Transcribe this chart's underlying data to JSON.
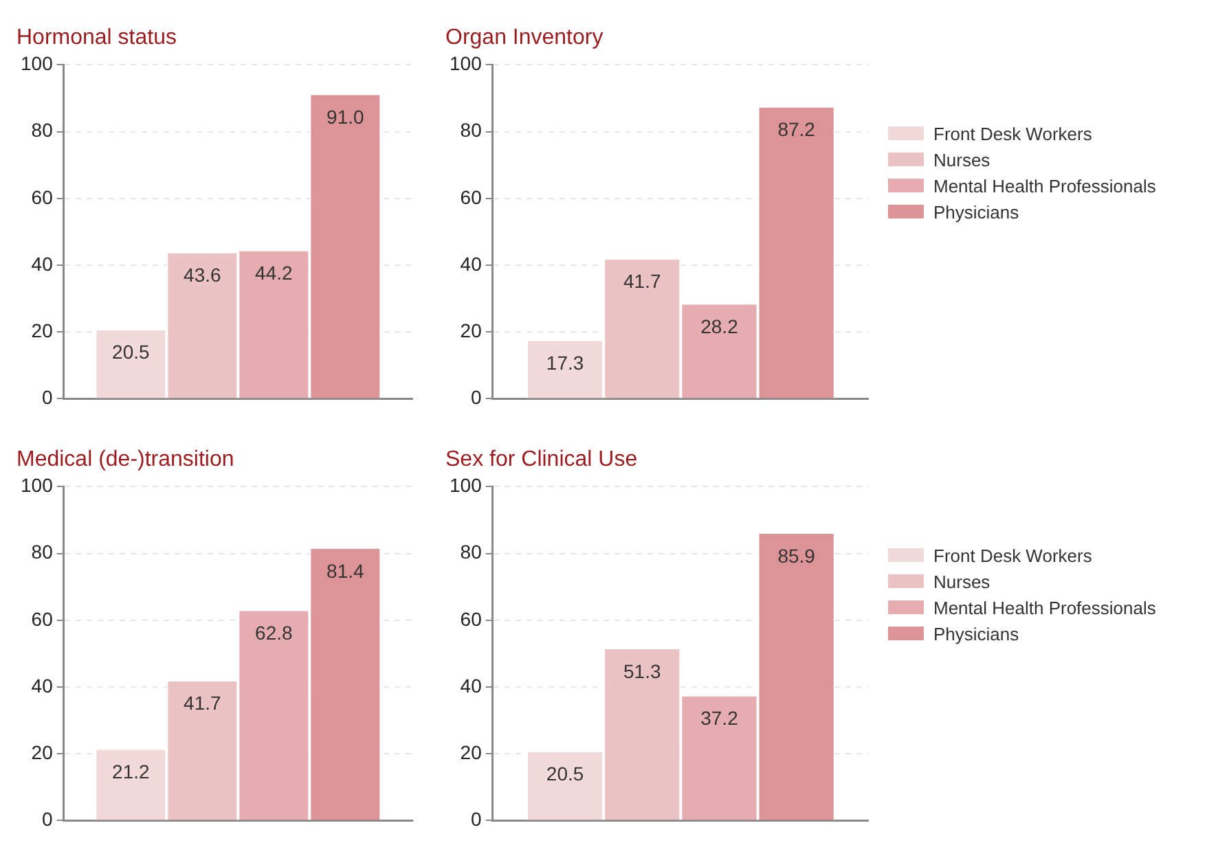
{
  "chart_data": [
    {
      "type": "bar",
      "title": "Hormonal status",
      "categories": [
        null
      ],
      "ylim": [
        0,
        100
      ],
      "yticks": [
        0,
        20,
        40,
        60,
        80,
        100
      ],
      "grid": "y",
      "legend": false,
      "series": [
        {
          "color": "#f2d9da",
          "values": [
            20.5
          ],
          "value_labels": [
            "20.5"
          ]
        },
        {
          "color": "#ecc3c5",
          "values": [
            43.6
          ],
          "value_labels": [
            "43.6"
          ]
        },
        {
          "color": "#e5adb0",
          "values": [
            44.2
          ],
          "value_labels": [
            "44.2"
          ]
        },
        {
          "color": "#dd9497",
          "values": [
            91.0
          ],
          "value_labels": [
            "91.0"
          ]
        }
      ]
    },
    {
      "type": "bar",
      "title": "Organ Inventory",
      "categories": [
        null
      ],
      "ylim": [
        0,
        100
      ],
      "yticks": [
        0,
        20,
        40,
        60,
        80,
        100
      ],
      "grid": "y",
      "legend": "right",
      "series": [
        {
          "name": "Front Desk Workers",
          "color": "#f2d9da",
          "values": [
            17.3
          ],
          "value_labels": [
            "17.3"
          ]
        },
        {
          "name": "Nurses",
          "color": "#ecc3c5",
          "values": [
            41.7
          ],
          "value_labels": [
            "41.7"
          ]
        },
        {
          "name": "Mental Health Professionals",
          "color": "#e5adb0",
          "values": [
            28.2
          ],
          "value_labels": [
            "28.2"
          ]
        },
        {
          "name": "Physicians",
          "color": "#dd9497",
          "values": [
            87.2
          ],
          "value_labels": [
            "87.2"
          ]
        }
      ]
    },
    {
      "type": "bar",
      "title": "Medical (de-)transition",
      "categories": [
        null
      ],
      "ylim": [
        0,
        100
      ],
      "yticks": [
        0,
        20,
        40,
        60,
        80,
        100
      ],
      "grid": "y",
      "legend": false,
      "series": [
        {
          "color": "#f2d9da",
          "values": [
            21.2
          ],
          "value_labels": [
            "21.2"
          ]
        },
        {
          "color": "#ecc3c5",
          "values": [
            41.7
          ],
          "value_labels": [
            "41.7"
          ]
        },
        {
          "color": "#e5adb0",
          "values": [
            62.8
          ],
          "value_labels": [
            "62.8"
          ]
        },
        {
          "color": "#dd9497",
          "values": [
            81.4
          ],
          "value_labels": [
            "81.4"
          ]
        }
      ]
    },
    {
      "type": "bar",
      "title": "Sex for Clinical Use",
      "categories": [
        null
      ],
      "ylim": [
        0,
        100
      ],
      "yticks": [
        0,
        20,
        40,
        60,
        80,
        100
      ],
      "grid": "y",
      "legend": "right",
      "series": [
        {
          "name": "Front Desk Workers",
          "color": "#f2d9da",
          "values": [
            20.5
          ],
          "value_labels": [
            "20.5"
          ]
        },
        {
          "name": "Nurses",
          "color": "#ecc3c5",
          "values": [
            51.3
          ],
          "value_labels": [
            "51.3"
          ]
        },
        {
          "name": "Mental Health Professionals",
          "color": "#e5adb0",
          "values": [
            37.2
          ],
          "value_labels": [
            "37.2"
          ]
        },
        {
          "name": "Physicians",
          "color": "#dd9497",
          "values": [
            85.9
          ],
          "value_labels": [
            "85.9"
          ]
        }
      ]
    }
  ]
}
